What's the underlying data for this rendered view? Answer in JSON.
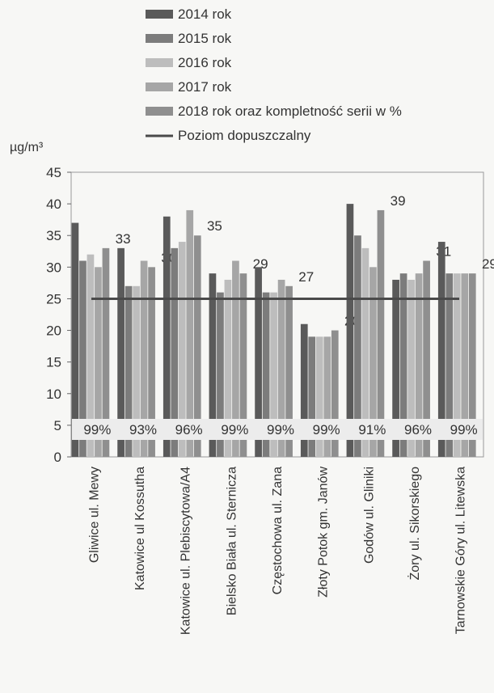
{
  "chart_data": {
    "type": "bar",
    "ylabel": "µg/m³",
    "ylim": [
      0,
      45
    ],
    "yticks": [
      0,
      5,
      10,
      15,
      20,
      25,
      30,
      35,
      40,
      45
    ],
    "grid": false,
    "legend_position": "top",
    "categories": [
      "Gliwice ul. Mewy",
      "Katowice ul Kossutha",
      "Katowice ul. Plebiscytowa/A4",
      "Bielsko Biała ul. Sternicza",
      "Częstochowa ul. Zana",
      "Złoty Potok gm. Janów",
      "Godów ul. Gliniki",
      "Żory ul. Sikorskiego",
      "Tarnowskie Góry ul. Litewska"
    ],
    "series": [
      {
        "name": "2014 rok",
        "color": "#5a5a5a",
        "values": [
          37,
          33,
          38,
          29,
          30,
          21,
          40,
          28,
          34
        ]
      },
      {
        "name": "2015 rok",
        "color": "#7c7c7c",
        "values": [
          31,
          27,
          33,
          26,
          26,
          19,
          35,
          29,
          29
        ]
      },
      {
        "name": "2016 rok",
        "color": "#bdbdbd",
        "values": [
          32,
          27,
          34,
          28,
          26,
          19,
          33,
          28,
          29
        ]
      },
      {
        "name": "2017 rok",
        "color": "#a6a6a6",
        "values": [
          30,
          31,
          39,
          31,
          28,
          19,
          30,
          29,
          29
        ]
      },
      {
        "name": "2018 rok oraz kompletność serii w %",
        "color": "#8f8f8f",
        "values": [
          33,
          30,
          35,
          29,
          27,
          20,
          39,
          31,
          29
        ]
      }
    ],
    "reference_line": {
      "name": "Poziom dopuszczalny",
      "value": 25,
      "color": "#4a4a4a"
    },
    "data_labels_2018": [
      "33",
      "30",
      "35",
      "29",
      "27",
      "20",
      "39",
      "31",
      "29"
    ],
    "completeness_labels": [
      "99%",
      "93%",
      "96%",
      "99%",
      "99%",
      "99%",
      "91%",
      "96%",
      "99%"
    ]
  }
}
